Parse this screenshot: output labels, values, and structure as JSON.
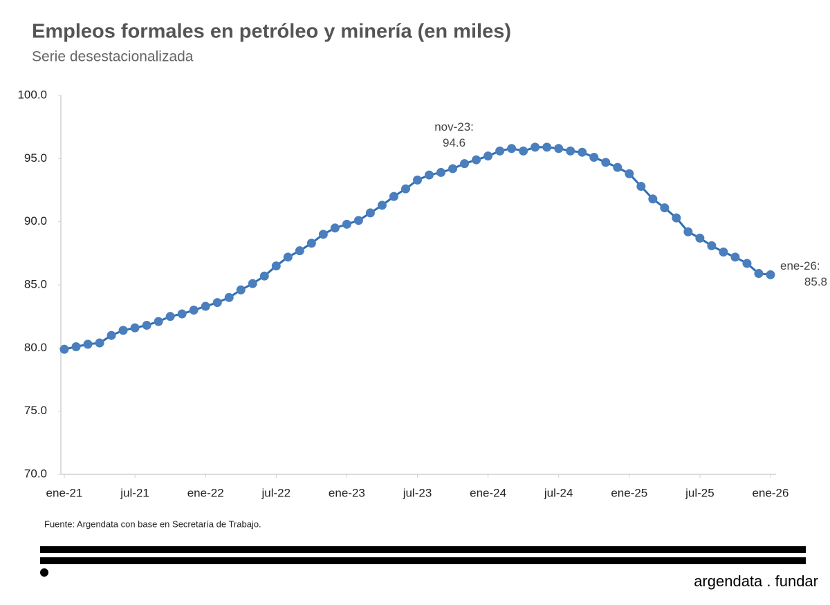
{
  "chart_data": {
    "type": "line",
    "title": "Empleos formales en petróleo y minería (en miles)",
    "subtitle": "Serie desestacionalizada",
    "categories": [
      "ene-21",
      null,
      null,
      null,
      null,
      null,
      "jul-21",
      null,
      null,
      null,
      null,
      null,
      "ene-22",
      null,
      null,
      null,
      null,
      null,
      "jul-22",
      null,
      null,
      null,
      null,
      null,
      "ene-23",
      null,
      null,
      null,
      null,
      null,
      "jul-23",
      null,
      null,
      null,
      null,
      null,
      "ene-24",
      null,
      null,
      null,
      null,
      null,
      "jul-24",
      null,
      null,
      null,
      null,
      null,
      "ene-25",
      null,
      null,
      null,
      null,
      null,
      "jul-25",
      null,
      null,
      null,
      null,
      null,
      "ene-26"
    ],
    "series": [
      {
        "name": "Empleos formales",
        "color": "#2a6fb5",
        "marker_color": "#4a7ebd",
        "values": [
          79.9,
          80.1,
          80.3,
          80.4,
          81.0,
          81.4,
          81.6,
          81.8,
          82.1,
          82.5,
          82.7,
          83.0,
          83.3,
          83.6,
          84.0,
          84.6,
          85.1,
          85.7,
          86.5,
          87.2,
          87.7,
          88.3,
          89.0,
          89.5,
          89.8,
          90.1,
          90.7,
          91.3,
          92.0,
          92.6,
          93.3,
          93.7,
          93.9,
          94.2,
          94.6,
          94.9,
          95.2,
          95.6,
          95.8,
          95.6,
          95.9,
          95.9,
          95.8,
          95.6,
          95.5,
          95.1,
          94.7,
          94.3,
          93.8,
          92.8,
          91.8,
          91.1,
          90.3,
          89.2,
          88.7,
          88.1,
          87.6,
          87.2,
          86.7,
          85.9,
          85.8
        ]
      }
    ],
    "ylim": [
      70,
      100
    ],
    "yticks": [
      {
        "value": 70,
        "label": "70.0"
      },
      {
        "value": 75,
        "label": "75.0"
      },
      {
        "value": 80,
        "label": "80.0"
      },
      {
        "value": 85,
        "label": "85.0"
      },
      {
        "value": 90,
        "label": "90.0"
      },
      {
        "value": 95,
        "label": "95.0"
      },
      {
        "value": 100,
        "label": "100.0"
      }
    ],
    "grid": false,
    "annotations": [
      {
        "label": "nov-23:",
        "value": 94.6
      },
      {
        "label": "ene-26:",
        "value": 85.8
      }
    ],
    "source": "Fuente: Argendata con base en Secretaría de Trabajo.",
    "brand": "argendata . fundar"
  }
}
